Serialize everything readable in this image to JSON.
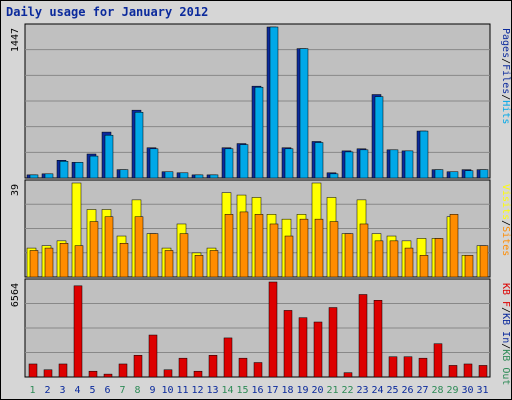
{
  "title": "Daily usage for January 2012",
  "colors": {
    "pages": "#0b2a9c",
    "files": "#0b2a9c",
    "hits": "#00a8e8",
    "visits": "#ffff00",
    "sites": "#ff8c00",
    "kb_in": "#0b2a9c",
    "kb_out": "#2e8b57",
    "kb_f": "#dd0000",
    "weekend": "#2e8b57",
    "weekday": "#0b2a9c",
    "panel_bg": "#c0c0c0",
    "frame_bg": "#d6d6d6"
  },
  "chart_data": [
    {
      "type": "bar",
      "name": "hits-files-pages",
      "ymax_label": "1447",
      "legend": [
        {
          "key": "pages",
          "label": "Pages"
        },
        {
          "key": "sep",
          "label": "/"
        },
        {
          "key": "files",
          "label": "Files"
        },
        {
          "key": "sep",
          "label": "/"
        },
        {
          "key": "hits",
          "label": "Hits"
        }
      ],
      "categories": [
        "1",
        "2",
        "3",
        "4",
        "5",
        "6",
        "7",
        "8",
        "9",
        "10",
        "11",
        "12",
        "13",
        "14",
        "15",
        "16",
        "17",
        "18",
        "19",
        "20",
        "21",
        "22",
        "23",
        "24",
        "25",
        "26",
        "27",
        "28",
        "29",
        "30",
        "31"
      ],
      "series": [
        {
          "name": "Pages",
          "values": [
            30,
            40,
            170,
            150,
            230,
            440,
            80,
            650,
            290,
            60,
            50,
            30,
            30,
            290,
            330,
            880,
            1447,
            290,
            1240,
            350,
            50,
            260,
            280,
            800,
            270,
            260,
            450,
            80,
            60,
            80,
            80
          ]
        },
        {
          "name": "Hits",
          "values": [
            30,
            40,
            160,
            150,
            210,
            410,
            80,
            630,
            280,
            60,
            50,
            30,
            30,
            280,
            320,
            870,
            1447,
            280,
            1240,
            340,
            40,
            250,
            270,
            780,
            270,
            260,
            450,
            80,
            60,
            70,
            80
          ]
        }
      ],
      "ylim": [
        0,
        1447
      ]
    },
    {
      "type": "bar",
      "name": "visits-sites",
      "ymax_label": "39",
      "legend": [
        {
          "key": "visits",
          "label": "Visits"
        },
        {
          "key": "sep",
          "label": "/"
        },
        {
          "key": "sites",
          "label": "Sites"
        }
      ],
      "categories": [
        "1",
        "2",
        "3",
        "4",
        "5",
        "6",
        "7",
        "8",
        "9",
        "10",
        "11",
        "12",
        "13",
        "14",
        "15",
        "16",
        "17",
        "18",
        "19",
        "20",
        "21",
        "22",
        "23",
        "24",
        "25",
        "26",
        "27",
        "28",
        "29",
        "30",
        "31"
      ],
      "series": [
        {
          "name": "Visits",
          "values": [
            12,
            13,
            15,
            39,
            28,
            28,
            17,
            32,
            18,
            12,
            22,
            10,
            12,
            35,
            34,
            33,
            26,
            24,
            26,
            39,
            33,
            18,
            32,
            18,
            17,
            15,
            16,
            16,
            25,
            9,
            13
          ]
        },
        {
          "name": "Sites",
          "values": [
            11,
            12,
            14,
            13,
            23,
            25,
            14,
            25,
            18,
            11,
            18,
            9,
            11,
            26,
            27,
            26,
            22,
            17,
            24,
            24,
            23,
            18,
            22,
            15,
            15,
            12,
            9,
            16,
            26,
            9,
            13
          ]
        }
      ],
      "ylim": [
        0,
        39
      ]
    },
    {
      "type": "bar",
      "name": "kbytes",
      "ymax_label": "6564",
      "legend": [
        {
          "key": "kb_f",
          "label": "KB F"
        },
        {
          "key": "sep",
          "label": "/"
        },
        {
          "key": "kb_in",
          "label": "KB In"
        },
        {
          "key": "sep",
          "label": "/"
        },
        {
          "key": "kb_out",
          "label": "KB Out"
        }
      ],
      "categories": [
        "1",
        "2",
        "3",
        "4",
        "5",
        "6",
        "7",
        "8",
        "9",
        "10",
        "11",
        "12",
        "13",
        "14",
        "15",
        "16",
        "17",
        "18",
        "19",
        "20",
        "21",
        "22",
        "23",
        "24",
        "25",
        "26",
        "27",
        "28",
        "29",
        "30",
        "31"
      ],
      "series": [
        {
          "name": "KB F",
          "values": [
            900,
            500,
            900,
            6300,
            400,
            200,
            900,
            1500,
            2900,
            500,
            1300,
            400,
            1500,
            2700,
            1300,
            1000,
            6564,
            4600,
            4100,
            3800,
            4800,
            300,
            5700,
            5300,
            1400,
            1400,
            1300,
            2300,
            800,
            900,
            800
          ]
        }
      ],
      "ylim": [
        0,
        6564
      ]
    }
  ],
  "day_labels": [
    "1",
    "2",
    "3",
    "4",
    "5",
    "6",
    "7",
    "8",
    "9",
    "10",
    "11",
    "12",
    "13",
    "14",
    "15",
    "16",
    "17",
    "18",
    "19",
    "20",
    "21",
    "22",
    "23",
    "24",
    "25",
    "26",
    "27",
    "28",
    "29",
    "30",
    "31"
  ],
  "weekend_days": [
    "1",
    "7",
    "8",
    "14",
    "15",
    "21",
    "22",
    "28",
    "29"
  ]
}
